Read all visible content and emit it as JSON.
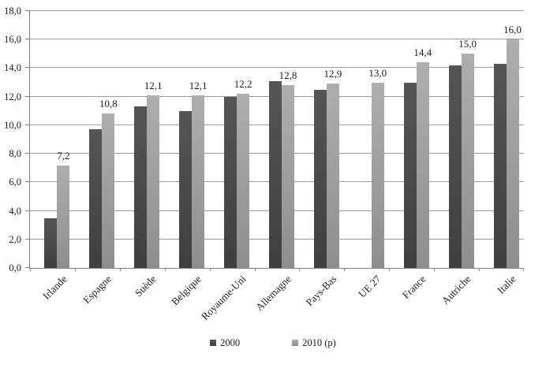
{
  "chart_data": {
    "type": "bar",
    "categories": [
      "Irlande",
      "Espagne",
      "Suède",
      "Belgique",
      "Royaume-Uni",
      "Allemagne",
      "Pays-Bas",
      "UE 27",
      "France",
      "Autriche",
      "Italie"
    ],
    "series": [
      {
        "name": "2000",
        "color_top": "#555555",
        "color_bottom": "#3f3f3f",
        "values": [
          3.5,
          9.7,
          11.3,
          11.0,
          12.0,
          13.1,
          12.5,
          null,
          13.0,
          14.2,
          14.3
        ]
      },
      {
        "name": "2010 (p)",
        "color_top": "#aeaeae",
        "color_bottom": "#8e8e8e",
        "values": [
          7.2,
          10.8,
          12.1,
          12.1,
          12.2,
          12.8,
          12.9,
          13.0,
          14.4,
          15.0,
          16.0
        ]
      }
    ],
    "data_labels": [
      "7,2",
      "10,8",
      "12,1",
      "12,1",
      "12,2",
      "12,8",
      "12,9",
      "13,0",
      "14,4",
      "15,0",
      "16,0"
    ],
    "data_labels_on_series": "2010 (p)",
    "y_ticks": [
      "18,0",
      "16,0",
      "14,0",
      "12,0",
      "10,0",
      "8,0",
      "6,0",
      "4,0",
      "2,0",
      "0,0"
    ],
    "ylim": [
      0,
      18
    ],
    "y_step": 2,
    "grid": true,
    "legend_position": "bottom"
  },
  "colors": {
    "axis": "#808080",
    "grid": "#9a9a9a",
    "text": "#1c1c1c",
    "background": "#ffffff"
  }
}
